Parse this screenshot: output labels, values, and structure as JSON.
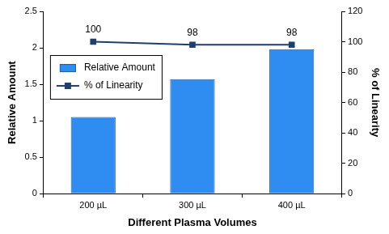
{
  "chart_data": {
    "type": "bar",
    "categories": [
      "200 µL",
      "300 µL",
      "400 µL"
    ],
    "x_label": "Different Plasma Volumes",
    "y_label": "Relative Amount",
    "y2_label": "% of Linearity",
    "series": [
      {
        "name": "Relative Amount",
        "type": "bar",
        "color": "#2f8cf0",
        "values": [
          1.05,
          1.57,
          1.98
        ]
      },
      {
        "name": "% of Linearity",
        "type": "line",
        "color": "#1f3f6e",
        "marker": "square",
        "axis": "y2",
        "data_labels": true,
        "values": [
          100,
          98,
          98
        ]
      }
    ],
    "ylim": [
      0,
      2.5
    ],
    "yticks": [
      0,
      0.5,
      1,
      1.5,
      2,
      2.5
    ],
    "y2lim": [
      0,
      120
    ],
    "y2ticks": [
      0,
      20,
      40,
      60,
      80,
      100,
      120
    ],
    "grid": false,
    "legend": "upper left"
  }
}
